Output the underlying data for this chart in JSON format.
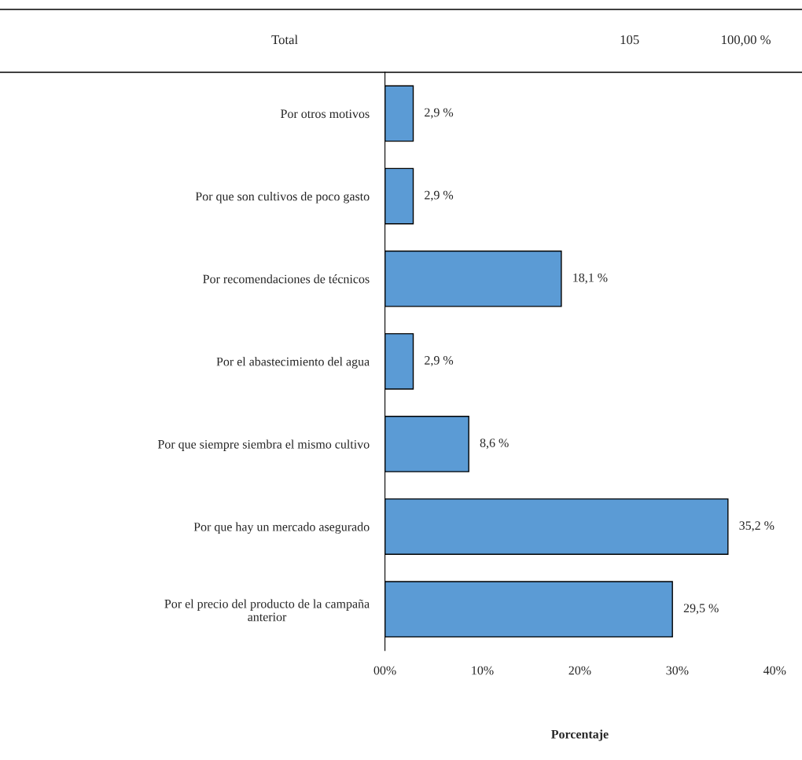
{
  "chart_data": {
    "type": "bar",
    "orientation": "horizontal",
    "categories": [
      "Por otros motivos",
      "Por que son cultivos de poco gasto",
      "Por recomendaciones de técnicos",
      "Por el abastecimiento del agua",
      "Por que siempre siembra el mismo cultivo",
      "Por que hay un mercado asegurado",
      "Por el precio del producto de la campaña\nanterior"
    ],
    "values": [
      2.9,
      2.9,
      18.1,
      2.9,
      8.6,
      35.2,
      29.5
    ],
    "value_labels": [
      "2,9 %",
      "2,9 %",
      "18,1 %",
      "2,9 %",
      "8,6 %",
      "35,2 %",
      "29,5 %"
    ],
    "color": "#5b9bd5",
    "xlim": [
      0,
      40
    ],
    "xticks": [
      {
        "value": 0,
        "label": "00%"
      },
      {
        "value": 10,
        "label": "10%"
      },
      {
        "value": 20,
        "label": "20%"
      },
      {
        "value": 30,
        "label": "30%"
      },
      {
        "value": 40,
        "label": "40%"
      }
    ],
    "xlabel": "Porcentaje",
    "annotations": [
      "Total",
      "105",
      "100,00 %"
    ],
    "grid": false
  }
}
